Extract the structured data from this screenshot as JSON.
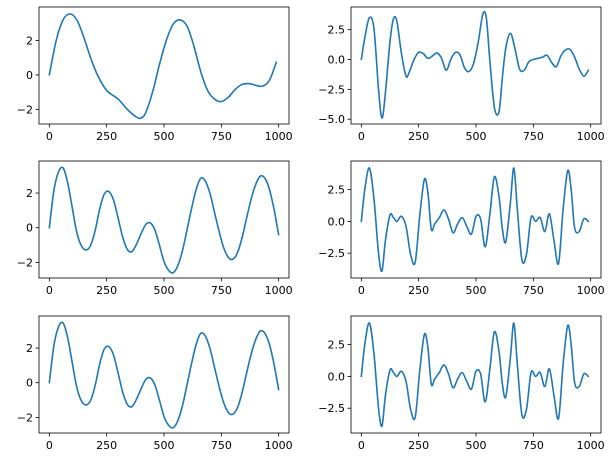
{
  "chart_data": [
    {
      "type": "line",
      "grid": false,
      "xlim": [
        -45,
        1045
      ],
      "ylim": [
        -2.85,
        3.95
      ],
      "x_ticks": [
        {
          "value": 0,
          "label": "0"
        },
        {
          "value": 250,
          "label": "250"
        },
        {
          "value": 500,
          "label": "500"
        },
        {
          "value": 750,
          "label": "750"
        },
        {
          "value": 1000,
          "label": "1000"
        }
      ],
      "y_ticks": [
        {
          "value": -2,
          "label": "−2"
        },
        {
          "value": 0,
          "label": "0"
        },
        {
          "value": 2,
          "label": "2"
        }
      ],
      "series": [
        {
          "color": "#1f77b4",
          "x": [
            0,
            30,
            60,
            90,
            120,
            150,
            180,
            210,
            250,
            300,
            340,
            380,
            400,
            420,
            450,
            480,
            510,
            540,
            570,
            600,
            630,
            660,
            690,
            720,
            750,
            780,
            810,
            840,
            870,
            900,
            930,
            960,
            990
          ],
          "y": [
            0,
            2.0,
            3.2,
            3.55,
            3.2,
            2.2,
            1.0,
            0.0,
            -0.9,
            -1.4,
            -2.0,
            -2.45,
            -2.5,
            -2.2,
            -1.0,
            0.6,
            2.0,
            2.95,
            3.2,
            2.85,
            1.7,
            0.2,
            -0.9,
            -1.4,
            -1.55,
            -1.3,
            -0.85,
            -0.55,
            -0.5,
            -0.6,
            -0.65,
            -0.3,
            0.75
          ]
        }
      ]
    },
    {
      "type": "line",
      "grid": false,
      "xlim": [
        -45,
        1045
      ],
      "ylim": [
        -5.4,
        4.4
      ],
      "x_ticks": [
        {
          "value": 0,
          "label": "0"
        },
        {
          "value": 250,
          "label": "250"
        },
        {
          "value": 500,
          "label": "500"
        },
        {
          "value": 750,
          "label": "750"
        },
        {
          "value": 1000,
          "label": "1000"
        }
      ],
      "y_ticks": [
        {
          "value": -5,
          "label": "−5.0"
        },
        {
          "value": -2.5,
          "label": "−2.5"
        },
        {
          "value": 0,
          "label": "0.0"
        },
        {
          "value": 2.5,
          "label": "2.5"
        }
      ],
      "series": [
        {
          "color": "#1f77b4",
          "x": [
            0,
            15,
            35,
            55,
            75,
            90,
            105,
            125,
            140,
            155,
            175,
            195,
            210,
            230,
            250,
            270,
            290,
            310,
            330,
            350,
            370,
            390,
            410,
            430,
            450,
            470,
            490,
            510,
            530,
            545,
            560,
            580,
            600,
            615,
            630,
            650,
            670,
            690,
            710,
            730,
            750,
            770,
            790,
            810,
            830,
            850,
            870,
            890,
            910,
            930,
            950,
            970,
            990
          ],
          "y": [
            0,
            1.8,
            3.5,
            2.6,
            -2.5,
            -4.9,
            -2.8,
            1.5,
            3.4,
            3.2,
            0.5,
            -1.4,
            -1.0,
            0,
            0.6,
            0.5,
            0.1,
            0.3,
            0.55,
            0.1,
            -0.9,
            0.0,
            0.6,
            0.4,
            -0.7,
            -1.0,
            -0.3,
            1.5,
            3.8,
            3.5,
            0.0,
            -4.0,
            -4.4,
            -1.5,
            1.0,
            2.2,
            0.9,
            -0.8,
            -0.9,
            -0.2,
            0.0,
            0.1,
            0.2,
            0.35,
            -0.25,
            -0.6,
            0.3,
            0.8,
            0.85,
            0.2,
            -0.8,
            -1.4,
            -0.9
          ]
        }
      ]
    },
    {
      "type": "line",
      "grid": false,
      "xlim": [
        -45,
        1045
      ],
      "ylim": [
        -2.9,
        3.85
      ],
      "x_ticks": [
        {
          "value": 0,
          "label": "0"
        },
        {
          "value": 250,
          "label": "250"
        },
        {
          "value": 500,
          "label": "500"
        },
        {
          "value": 750,
          "label": "750"
        },
        {
          "value": 1000,
          "label": "1000"
        }
      ],
      "y_ticks": [
        {
          "value": -2,
          "label": "−2"
        },
        {
          "value": 0,
          "label": "0"
        },
        {
          "value": 2,
          "label": "2"
        }
      ],
      "series": [
        {
          "color": "#1f77b4",
          "x": [
            0,
            20,
            40,
            60,
            80,
            100,
            120,
            140,
            160,
            180,
            200,
            220,
            240,
            260,
            280,
            300,
            320,
            340,
            360,
            380,
            400,
            420,
            440,
            460,
            480,
            500,
            520,
            540,
            560,
            580,
            600,
            620,
            640,
            660,
            680,
            700,
            720,
            740,
            760,
            780,
            800,
            820,
            840,
            860,
            880,
            900,
            920,
            940,
            960,
            980,
            1000
          ],
          "y": [
            0,
            2.15,
            3.22,
            3.45,
            2.6,
            1.15,
            -0.28,
            -1.05,
            -1.28,
            -1.02,
            -0.15,
            1.1,
            1.95,
            2.08,
            1.6,
            0.55,
            -0.55,
            -1.25,
            -1.38,
            -0.95,
            -0.35,
            0.18,
            0.28,
            -0.12,
            -1.0,
            -1.95,
            -2.45,
            -2.6,
            -2.2,
            -1.35,
            -0.15,
            1.1,
            2.2,
            2.85,
            2.7,
            2.0,
            0.9,
            -0.2,
            -1.15,
            -1.7,
            -1.82,
            -1.45,
            -0.6,
            0.55,
            1.65,
            2.5,
            2.98,
            2.85,
            2.2,
            1.05,
            -0.4
          ]
        }
      ]
    },
    {
      "type": "line",
      "grid": false,
      "xlim": [
        -45,
        1045
      ],
      "ylim": [
        -4.45,
        4.75
      ],
      "x_ticks": [
        {
          "value": 0,
          "label": "0"
        },
        {
          "value": 250,
          "label": "250"
        },
        {
          "value": 500,
          "label": "500"
        },
        {
          "value": 750,
          "label": "750"
        },
        {
          "value": 1000,
          "label": "1000"
        }
      ],
      "y_ticks": [
        {
          "value": -2.5,
          "label": "−2.5"
        },
        {
          "value": 0,
          "label": "0.0"
        },
        {
          "value": 2.5,
          "label": "2.5"
        }
      ],
      "series": [
        {
          "color": "#1f77b4",
          "x": [
            0,
            15,
            35,
            55,
            75,
            90,
            105,
            125,
            140,
            155,
            175,
            195,
            215,
            235,
            255,
            275,
            290,
            305,
            320,
            340,
            360,
            380,
            400,
            420,
            440,
            460,
            480,
            500,
            520,
            540,
            560,
            580,
            600,
            615,
            630,
            650,
            665,
            680,
            700,
            720,
            740,
            760,
            780,
            800,
            820,
            840,
            860,
            880,
            900,
            915,
            930,
            950,
            970,
            990
          ],
          "y": [
            0,
            2.5,
            4.2,
            1.8,
            -2.5,
            -3.9,
            -1.5,
            0.5,
            0.3,
            0.0,
            0.4,
            -0.4,
            -2.6,
            -3.2,
            0.5,
            3.3,
            2.3,
            -0.6,
            -0.2,
            0.3,
            0.9,
            0.2,
            -0.9,
            -0.2,
            0.3,
            -0.4,
            -1.0,
            0.4,
            0.2,
            -2.0,
            0.5,
            3.5,
            2.0,
            -0.6,
            -1.6,
            1.5,
            4.2,
            1.0,
            -3.0,
            -2.6,
            0.3,
            0.0,
            0.3,
            -0.8,
            0.6,
            -1.5,
            -3.3,
            1.0,
            4.0,
            2.5,
            -0.5,
            -0.8,
            0.2,
            0.0
          ]
        }
      ]
    },
    {
      "type": "line",
      "grid": false,
      "xlim": [
        -45,
        1045
      ],
      "ylim": [
        -2.9,
        3.85
      ],
      "x_ticks": [
        {
          "value": 0,
          "label": "0"
        },
        {
          "value": 250,
          "label": "250"
        },
        {
          "value": 500,
          "label": "500"
        },
        {
          "value": 750,
          "label": "750"
        },
        {
          "value": 1000,
          "label": "1000"
        }
      ],
      "y_ticks": [
        {
          "value": -2,
          "label": "−2"
        },
        {
          "value": 0,
          "label": "0"
        },
        {
          "value": 2,
          "label": "2"
        }
      ],
      "series": [
        {
          "color": "#1f77b4",
          "x": [
            0,
            20,
            40,
            60,
            80,
            100,
            120,
            140,
            160,
            180,
            200,
            220,
            240,
            260,
            280,
            300,
            320,
            340,
            360,
            380,
            400,
            420,
            440,
            460,
            480,
            500,
            520,
            540,
            560,
            580,
            600,
            620,
            640,
            660,
            680,
            700,
            720,
            740,
            760,
            780,
            800,
            820,
            840,
            860,
            880,
            900,
            920,
            940,
            960,
            980,
            1000
          ],
          "y": [
            0,
            2.15,
            3.22,
            3.45,
            2.6,
            1.15,
            -0.28,
            -1.05,
            -1.28,
            -1.02,
            -0.15,
            1.1,
            1.95,
            2.08,
            1.6,
            0.55,
            -0.55,
            -1.25,
            -1.38,
            -0.95,
            -0.35,
            0.18,
            0.28,
            -0.12,
            -1.0,
            -1.95,
            -2.45,
            -2.6,
            -2.2,
            -1.35,
            -0.15,
            1.1,
            2.2,
            2.85,
            2.7,
            2.0,
            0.9,
            -0.2,
            -1.15,
            -1.7,
            -1.82,
            -1.45,
            -0.6,
            0.55,
            1.65,
            2.5,
            2.98,
            2.85,
            2.2,
            1.05,
            -0.4
          ]
        }
      ]
    },
    {
      "type": "line",
      "grid": false,
      "xlim": [
        -45,
        1045
      ],
      "ylim": [
        -4.45,
        4.75
      ],
      "x_ticks": [
        {
          "value": 0,
          "label": "0"
        },
        {
          "value": 250,
          "label": "250"
        },
        {
          "value": 500,
          "label": "500"
        },
        {
          "value": 750,
          "label": "750"
        },
        {
          "value": 1000,
          "label": "1000"
        }
      ],
      "y_ticks": [
        {
          "value": -2.5,
          "label": "−2.5"
        },
        {
          "value": 0,
          "label": "0.0"
        },
        {
          "value": 2.5,
          "label": "2.5"
        }
      ],
      "series": [
        {
          "color": "#1f77b4",
          "x": [
            0,
            15,
            35,
            55,
            75,
            90,
            105,
            125,
            140,
            155,
            175,
            195,
            215,
            235,
            255,
            275,
            290,
            305,
            320,
            340,
            360,
            380,
            400,
            420,
            440,
            460,
            480,
            500,
            520,
            540,
            560,
            580,
            600,
            615,
            630,
            650,
            665,
            680,
            700,
            720,
            740,
            760,
            780,
            800,
            820,
            840,
            860,
            880,
            900,
            915,
            930,
            950,
            970,
            990
          ],
          "y": [
            0,
            2.5,
            4.2,
            1.8,
            -2.5,
            -3.9,
            -1.5,
            0.5,
            0.3,
            0.0,
            0.4,
            -0.4,
            -2.6,
            -3.2,
            0.5,
            3.3,
            2.3,
            -0.6,
            -0.2,
            0.3,
            0.9,
            0.2,
            -0.9,
            -0.2,
            0.3,
            -0.4,
            -1.0,
            0.4,
            0.2,
            -2.0,
            0.5,
            3.5,
            2.0,
            -0.6,
            -1.6,
            1.5,
            4.2,
            1.0,
            -3.0,
            -2.6,
            0.3,
            0.0,
            0.3,
            -0.8,
            0.6,
            -1.5,
            -3.3,
            1.0,
            4.0,
            2.5,
            -0.5,
            -0.8,
            0.2,
            0.0
          ]
        }
      ]
    }
  ]
}
